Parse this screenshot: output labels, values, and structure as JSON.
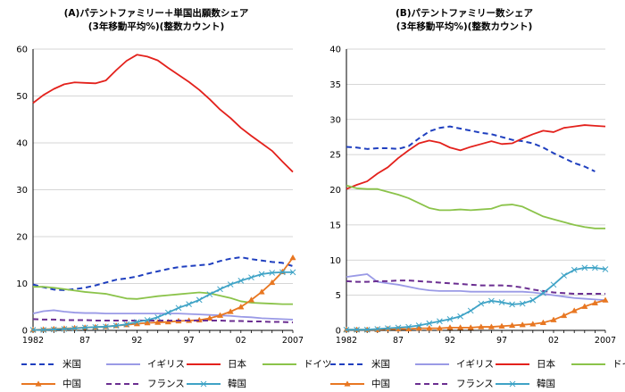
{
  "chart_data": [
    {
      "type": "line",
      "title": "(A)パテントファミリー＋単国出願数シェア",
      "subtitle": "(3年移動平均%)(整数カウント)",
      "x": [
        1982,
        1983,
        1984,
        1985,
        1986,
        1987,
        1988,
        1989,
        1990,
        1991,
        1992,
        1993,
        1994,
        1995,
        1996,
        1997,
        1998,
        1999,
        2000,
        2001,
        2002,
        2003,
        2004,
        2005,
        2006,
        2007
      ],
      "x_tick_labels": [
        "1982",
        "87",
        "92",
        "97",
        "02",
        "2007"
      ],
      "x_tick_positions": [
        1982,
        1987,
        1992,
        1997,
        2002,
        2007
      ],
      "ylim": [
        0,
        60
      ],
      "y_ticks": [
        0,
        10,
        20,
        30,
        40,
        50,
        60
      ],
      "grid": true,
      "series": [
        {
          "name": "米国",
          "color": "#1f3fbf",
          "style": "dashed",
          "marker": "none",
          "values": [
            9.8,
            9.2,
            8.7,
            8.6,
            8.8,
            9.1,
            9.6,
            10.2,
            10.8,
            11.1,
            11.5,
            12.1,
            12.6,
            13.1,
            13.5,
            13.7,
            13.9,
            14.1,
            14.8,
            15.3,
            15.6,
            15.2,
            14.9,
            14.6,
            14.4,
            13.7
          ]
        },
        {
          "name": "イギリス",
          "color": "#9a9ae6",
          "style": "solid",
          "marker": "none",
          "values": [
            3.6,
            4.1,
            4.3,
            4.0,
            3.8,
            3.7,
            3.7,
            3.6,
            3.6,
            3.6,
            3.6,
            3.6,
            3.6,
            3.6,
            3.6,
            3.5,
            3.4,
            3.3,
            3.2,
            3.1,
            2.9,
            2.8,
            2.6,
            2.5,
            2.4,
            2.3
          ]
        },
        {
          "name": "日本",
          "color": "#e3211c",
          "style": "solid",
          "marker": "none",
          "values": [
            48.5,
            50.2,
            51.5,
            52.5,
            52.9,
            52.8,
            52.7,
            53.3,
            55.5,
            57.5,
            58.8,
            58.4,
            57.6,
            56.0,
            54.5,
            53.0,
            51.3,
            49.3,
            47.1,
            45.3,
            43.2,
            41.5,
            39.9,
            38.3,
            36.0,
            33.8
          ]
        },
        {
          "name": "ドイツ",
          "color": "#8bc34a",
          "style": "solid",
          "marker": "none",
          "values": [
            9.3,
            9.3,
            9.1,
            8.8,
            8.5,
            8.2,
            8.0,
            7.8,
            7.3,
            6.8,
            6.7,
            7.0,
            7.3,
            7.5,
            7.7,
            7.9,
            8.1,
            7.9,
            7.4,
            6.9,
            6.2,
            5.9,
            5.8,
            5.7,
            5.6,
            5.6
          ]
        },
        {
          "name": "中国",
          "color": "#e87722",
          "style": "solid",
          "marker": "triangle",
          "values": [
            0.1,
            0.2,
            0.3,
            0.4,
            0.5,
            0.6,
            0.7,
            0.8,
            1.0,
            1.2,
            1.4,
            1.6,
            1.7,
            1.8,
            2.0,
            2.1,
            2.2,
            2.6,
            3.2,
            4.0,
            5.0,
            6.5,
            8.2,
            10.2,
            12.5,
            15.5
          ]
        },
        {
          "name": "フランス",
          "color": "#6b2e91",
          "style": "dashed",
          "marker": "none",
          "values": [
            2.4,
            2.3,
            2.3,
            2.2,
            2.2,
            2.2,
            2.1,
            2.1,
            2.1,
            2.1,
            2.1,
            2.1,
            2.1,
            2.1,
            2.1,
            2.1,
            2.1,
            2.1,
            2.1,
            2.0,
            2.0,
            1.9,
            1.9,
            1.8,
            1.8,
            1.7
          ]
        },
        {
          "name": "韓国",
          "color": "#3fa3c6",
          "style": "solid",
          "marker": "x",
          "values": [
            0.1,
            0.1,
            0.2,
            0.3,
            0.4,
            0.6,
            0.7,
            0.8,
            1.0,
            1.3,
            1.8,
            2.2,
            2.8,
            3.8,
            4.8,
            5.6,
            6.5,
            7.7,
            8.8,
            9.8,
            10.6,
            11.3,
            12.0,
            12.3,
            12.4,
            12.4
          ]
        }
      ]
    },
    {
      "type": "line",
      "title": "(B)パテントファミリー数シェア",
      "subtitle": "(3年移動平均%)(整数カウント)",
      "x": [
        1982,
        1983,
        1984,
        1985,
        1986,
        1987,
        1988,
        1989,
        1990,
        1991,
        1992,
        1993,
        1994,
        1995,
        1996,
        1997,
        1998,
        1999,
        2000,
        2001,
        2002,
        2003,
        2004,
        2005,
        2006,
        2007
      ],
      "x_tick_labels": [
        "1982",
        "87",
        "92",
        "97",
        "02",
        "2007"
      ],
      "x_tick_positions": [
        1982,
        1987,
        1992,
        1997,
        2002,
        2007
      ],
      "ylim": [
        0,
        40
      ],
      "y_ticks": [
        0,
        5,
        10,
        15,
        20,
        25,
        30,
        35,
        40
      ],
      "grid": true,
      "series": [
        {
          "name": "米国",
          "color": "#1f3fbf",
          "style": "dashed",
          "marker": "none",
          "values": [
            26.1,
            26.0,
            25.8,
            25.9,
            25.9,
            25.8,
            26.2,
            27.3,
            28.3,
            28.8,
            29.0,
            28.7,
            28.4,
            28.1,
            27.9,
            27.5,
            27.1,
            26.9,
            26.6,
            26.0,
            25.2,
            24.5,
            23.8,
            23.3,
            22.6,
            null
          ]
        },
        {
          "name": "イギリス",
          "color": "#9a9ae6",
          "style": "solid",
          "marker": "none",
          "values": [
            7.6,
            7.8,
            8.0,
            6.9,
            6.7,
            6.5,
            6.2,
            5.9,
            5.7,
            5.6,
            5.6,
            5.6,
            5.5,
            5.5,
            5.5,
            5.5,
            5.5,
            5.5,
            5.4,
            5.2,
            5.0,
            4.8,
            4.6,
            4.5,
            4.4,
            4.3
          ]
        },
        {
          "name": "日本",
          "color": "#e3211c",
          "style": "solid",
          "marker": "none",
          "values": [
            20.1,
            20.7,
            21.2,
            22.3,
            23.2,
            24.5,
            25.6,
            26.6,
            27.0,
            26.7,
            26.0,
            25.6,
            26.1,
            26.5,
            26.9,
            26.5,
            26.6,
            27.3,
            27.9,
            28.4,
            28.2,
            28.8,
            29.0,
            29.2,
            29.1,
            29.0
          ]
        },
        {
          "name": "ドイツ",
          "color": "#8bc34a",
          "style": "solid",
          "marker": "none",
          "values": [
            20.6,
            20.2,
            20.1,
            20.1,
            19.7,
            19.3,
            18.8,
            18.1,
            17.4,
            17.1,
            17.1,
            17.2,
            17.1,
            17.2,
            17.3,
            17.8,
            17.9,
            17.6,
            16.9,
            16.2,
            15.8,
            15.4,
            15.0,
            14.7,
            14.5,
            14.5
          ]
        },
        {
          "name": "中国",
          "color": "#e87722",
          "style": "solid",
          "marker": "triangle",
          "values": [
            0.1,
            0.1,
            0.1,
            0.1,
            0.2,
            0.2,
            0.2,
            0.3,
            0.3,
            0.3,
            0.4,
            0.4,
            0.4,
            0.5,
            0.5,
            0.6,
            0.7,
            0.8,
            0.9,
            1.1,
            1.5,
            2.1,
            2.8,
            3.4,
            3.9,
            4.3
          ]
        },
        {
          "name": "フランス",
          "color": "#6b2e91",
          "style": "dashed",
          "marker": "none",
          "values": [
            7.0,
            6.9,
            6.9,
            7.0,
            7.0,
            7.1,
            7.1,
            7.0,
            6.9,
            6.8,
            6.7,
            6.6,
            6.5,
            6.4,
            6.4,
            6.4,
            6.3,
            6.1,
            5.8,
            5.6,
            5.4,
            5.3,
            5.2,
            5.2,
            5.2,
            5.2
          ]
        },
        {
          "name": "韓国",
          "color": "#3fa3c6",
          "style": "solid",
          "marker": "x",
          "values": [
            0.1,
            0.1,
            0.1,
            0.2,
            0.3,
            0.4,
            0.5,
            0.7,
            1.0,
            1.3,
            1.6,
            2.0,
            2.8,
            3.8,
            4.2,
            4.0,
            3.7,
            3.8,
            4.3,
            5.3,
            6.5,
            7.8,
            8.6,
            8.9,
            8.9,
            8.7
          ]
        }
      ]
    }
  ],
  "legend": [
    {
      "label": "米国",
      "color": "#1f3fbf",
      "style": "dashed",
      "marker": "none"
    },
    {
      "label": "イギリス",
      "color": "#9a9ae6",
      "style": "solid",
      "marker": "none"
    },
    {
      "label": "日本",
      "color": "#e3211c",
      "style": "solid",
      "marker": "none"
    },
    {
      "label": "ドイツ",
      "color": "#8bc34a",
      "style": "solid",
      "marker": "none"
    },
    {
      "label": "中国",
      "color": "#e87722",
      "style": "solid",
      "marker": "triangle"
    },
    {
      "label": "フランス",
      "color": "#6b2e91",
      "style": "dashed",
      "marker": "none"
    },
    {
      "label": "韓国",
      "color": "#3fa3c6",
      "style": "solid",
      "marker": "x"
    }
  ]
}
